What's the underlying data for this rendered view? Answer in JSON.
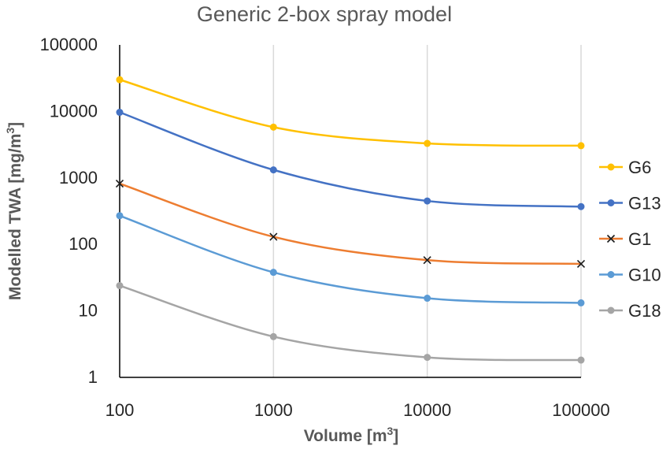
{
  "chart_data": {
    "type": "line",
    "title": "Generic 2-box spray model",
    "xlabel": "Volume [m",
    "xlabel_sup": "3",
    "xlabel_suffix": "]",
    "ylabel": "Modelled TWA [mg/m",
    "ylabel_sup": "3",
    "ylabel_suffix": "]",
    "xscale": "log",
    "yscale": "log",
    "xlim": [
      100,
      100000
    ],
    "ylim": [
      1,
      100000
    ],
    "x": [
      100,
      1000,
      10000,
      100000
    ],
    "x_tick_labels": [
      "100",
      "1000",
      "10000",
      "100000"
    ],
    "y_tick_labels": [
      "1",
      "10",
      "100",
      "1000",
      "10000",
      "100000"
    ],
    "grid": "vertical",
    "smooth": true,
    "legend_position": "right",
    "series": [
      {
        "name": "G6",
        "values": [
          30000,
          5800,
          3300,
          3050
        ],
        "color": "#FFC000",
        "marker": "circle"
      },
      {
        "name": "G13",
        "values": [
          9700,
          1320,
          450,
          370
        ],
        "color": "#4472C4",
        "marker": "circle"
      },
      {
        "name": "G1",
        "values": [
          820,
          130,
          58,
          51
        ],
        "color": "#ED7D31",
        "line_color": "#ED7D31",
        "marker": "x",
        "marker_color": "#1a1a1a"
      },
      {
        "name": "G10",
        "values": [
          270,
          38,
          15.5,
          13.2
        ],
        "color": "#5B9BD5",
        "marker": "circle"
      },
      {
        "name": "G18",
        "values": [
          24,
          4.1,
          2.0,
          1.82
        ],
        "color": "#A5A5A5",
        "marker": "circle"
      }
    ]
  }
}
